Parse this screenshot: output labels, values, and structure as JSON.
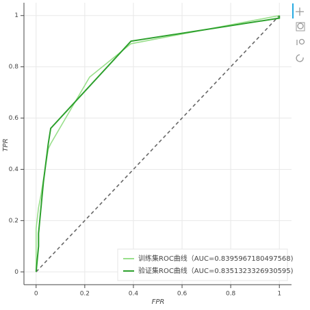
{
  "chart_data": {
    "type": "line",
    "x_label": "FPR",
    "y_label": "TPR",
    "xlim": [
      -0.05,
      1.05
    ],
    "ylim": [
      -0.05,
      1.05
    ],
    "xticks": [
      0,
      0.2,
      0.4,
      0.6,
      0.8,
      1
    ],
    "yticks": [
      0,
      0.2,
      0.4,
      0.6,
      0.8,
      1
    ],
    "grid": true,
    "legend_position": "bottom-right",
    "series": [
      {
        "name": "训练集ROC曲线（AUC=0.8395967180497568)",
        "color": "#98df8a",
        "x": [
          0,
          0,
          0.01,
          0.02,
          0.05,
          0.06,
          0.22,
          0.39,
          1
        ],
        "values": [
          0,
          0.17,
          0.25,
          0.3,
          0.48,
          0.5,
          0.76,
          0.89,
          1
        ]
      },
      {
        "name": "验证集ROC曲线（AUC=0.8351323326930595)",
        "color": "#2ca02c",
        "x": [
          0,
          0.01,
          0.01,
          0.03,
          0.05,
          0.06,
          0.39,
          1,
          1
        ],
        "values": [
          0,
          0.1,
          0.15,
          0.35,
          0.5,
          0.56,
          0.9,
          0.99,
          1
        ]
      }
    ],
    "diagonal": {
      "color": "#666666",
      "x": [
        0,
        1
      ],
      "values": [
        0,
        1
      ]
    }
  }
}
